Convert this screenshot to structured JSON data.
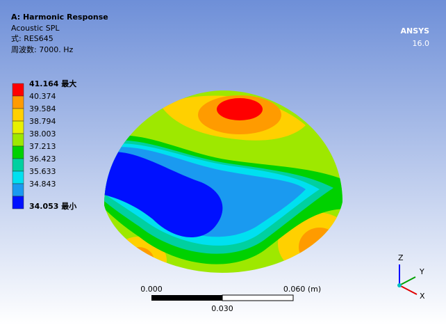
{
  "header": {
    "title": "A: Harmonic Response",
    "result": "Acoustic SPL",
    "expression": "式: RES645",
    "frequency": "周波数: 7000. Hz"
  },
  "logo": {
    "name": "ANSYS",
    "version": "16.0"
  },
  "legend": {
    "labels": [
      "41.164 最大",
      "40.374",
      "39.584",
      "38.794",
      "38.003",
      "37.213",
      "36.423",
      "35.633",
      "34.843",
      "34.053 最小"
    ],
    "colors": [
      "#ff0000",
      "#ff9b00",
      "#ffd000",
      "#e8f000",
      "#9ee800",
      "#00d100",
      "#00d0a0",
      "#00e0f0",
      "#1a9af0",
      "#0010ff"
    ]
  },
  "scale_bar": {
    "start": "0.000",
    "end": "0.060 (m)",
    "mid": "0.030"
  },
  "triad": {
    "z": "Z",
    "y": "Y",
    "x": "X"
  }
}
